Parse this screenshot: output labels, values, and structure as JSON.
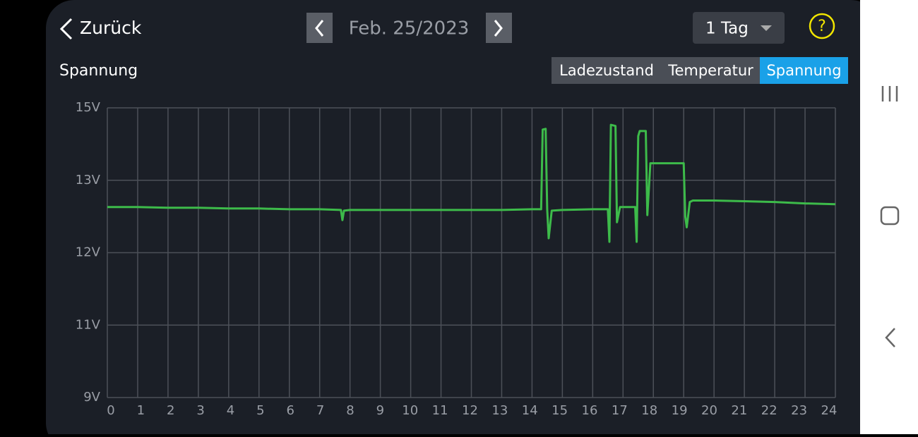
{
  "header": {
    "back": "Zurück",
    "date": "Feb. 25/2023",
    "range": "1 Tag",
    "help": "?"
  },
  "controls": {
    "tabs": [
      "Ladezustand",
      "Temperatur",
      "Spannung"
    ],
    "selected": 2
  },
  "chart_data": {
    "type": "line",
    "title": "Spannung",
    "x": [
      0,
      1,
      2,
      3,
      4,
      5,
      6,
      7,
      7.7,
      7.75,
      7.8,
      8,
      9,
      10,
      11,
      12,
      13,
      14,
      14.3,
      14.35,
      14.45,
      14.5,
      14.55,
      14.65,
      15,
      16,
      16.5,
      16.55,
      16.6,
      16.75,
      16.8,
      16.9,
      17.4,
      17.45,
      17.5,
      17.55,
      17.75,
      17.8,
      17.9,
      19.0,
      19.05,
      19.1,
      19.2,
      19.3,
      20,
      21,
      22,
      23,
      24
    ],
    "series": [
      {
        "name": "Spannung",
        "color": "#3dbb4a",
        "values": [
          12.63,
          12.63,
          12.62,
          12.62,
          12.61,
          12.61,
          12.6,
          12.6,
          12.59,
          12.45,
          12.58,
          12.59,
          12.59,
          12.59,
          12.59,
          12.59,
          12.59,
          12.6,
          12.6,
          14.4,
          14.42,
          12.6,
          12.2,
          12.58,
          12.59,
          12.6,
          12.6,
          12.15,
          14.53,
          14.5,
          12.42,
          12.63,
          12.63,
          12.15,
          14.22,
          14.36,
          14.36,
          12.52,
          13.47,
          13.47,
          12.5,
          12.35,
          12.7,
          12.72,
          12.72,
          12.71,
          12.7,
          12.68,
          12.67
        ]
      }
    ],
    "xlim": [
      0,
      24
    ],
    "xticks": [
      0,
      1,
      2,
      3,
      4,
      5,
      6,
      7,
      8,
      9,
      10,
      11,
      12,
      13,
      14,
      15,
      16,
      17,
      18,
      19,
      20,
      21,
      22,
      23,
      24
    ],
    "ylim": [
      9,
      15
    ],
    "yticks": [
      {
        "value": 9,
        "label": "9V"
      },
      {
        "value": 11,
        "label": "11V"
      },
      {
        "value": 12,
        "label": "12V"
      },
      {
        "value": 13,
        "label": "13V"
      },
      {
        "value": 15,
        "label": "15V"
      }
    ],
    "grid": true
  }
}
